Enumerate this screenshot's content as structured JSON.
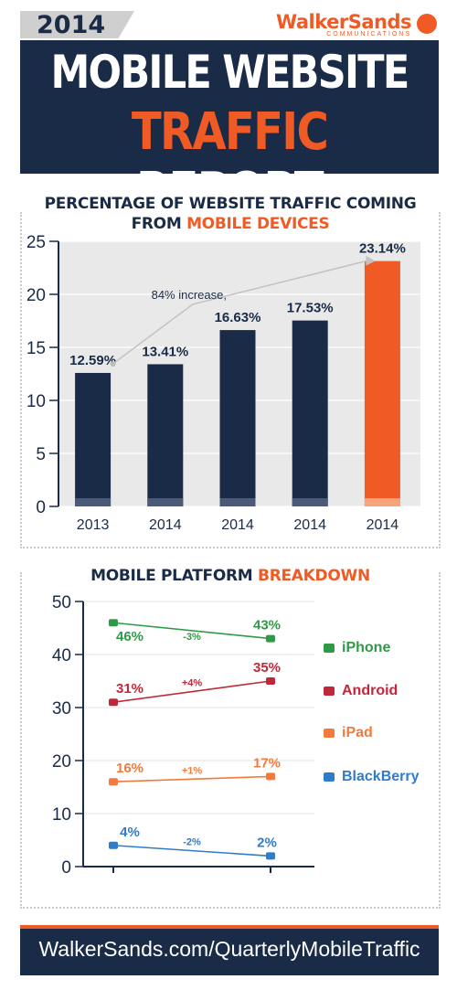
{
  "header": {
    "year": "2014",
    "brand_name": "WalkerSands",
    "brand_sub": "COMMUNICATIONS",
    "title_line1": "MOBILE WEBSITE",
    "title_line2_a": "TRAFFIC",
    "title_line2_b": " REPORT"
  },
  "colors": {
    "navy": "#1a2b47",
    "orange": "#f05a24",
    "iphone": "#2e9a47",
    "android": "#c0283a",
    "ipad": "#f37a3c",
    "blackberry": "#2f7cc9"
  },
  "chart_data": [
    {
      "type": "bar",
      "title": "PERCENTAGE OF WEBSITE TRAFFIC COMING",
      "title_line2_a": "FROM ",
      "title_line2_b": "MOBILE DEVICES",
      "categories": [
        "2013",
        "2014",
        "2014",
        "2014",
        "2014"
      ],
      "values": [
        12.59,
        13.41,
        16.63,
        17.53,
        23.14
      ],
      "labels": [
        "12.59%",
        "13.41%",
        "16.63%",
        "17.53%",
        "23.14%"
      ],
      "ylim": [
        0,
        25
      ],
      "yticks": [
        "0",
        "5",
        "10",
        "15",
        "20",
        "25"
      ],
      "annotation": "84% increase,",
      "grid": true
    },
    {
      "type": "line",
      "title_a": "MOBILE PLATFORM ",
      "title_b": "BREAKDOWN",
      "ylim": [
        0,
        50
      ],
      "yticks": [
        "0",
        "10",
        "20",
        "30",
        "40",
        "50"
      ],
      "legend_position": "right",
      "series": [
        {
          "name": "iPhone",
          "values": [
            46,
            43
          ],
          "labels": [
            "46%",
            "43%"
          ],
          "change": "-3%"
        },
        {
          "name": "Android",
          "values": [
            31,
            35
          ],
          "labels": [
            "31%",
            "35%"
          ],
          "change": "+4%"
        },
        {
          "name": "iPad",
          "values": [
            16,
            17
          ],
          "labels": [
            "16%",
            "17%"
          ],
          "change": "+1%"
        },
        {
          "name": "BlackBerry",
          "values": [
            4,
            2
          ],
          "labels": [
            "4%",
            "2%"
          ],
          "change": "-2%"
        }
      ]
    }
  ],
  "footer": {
    "url": "WalkerSands.com/QuarterlyMobileTraffic"
  }
}
